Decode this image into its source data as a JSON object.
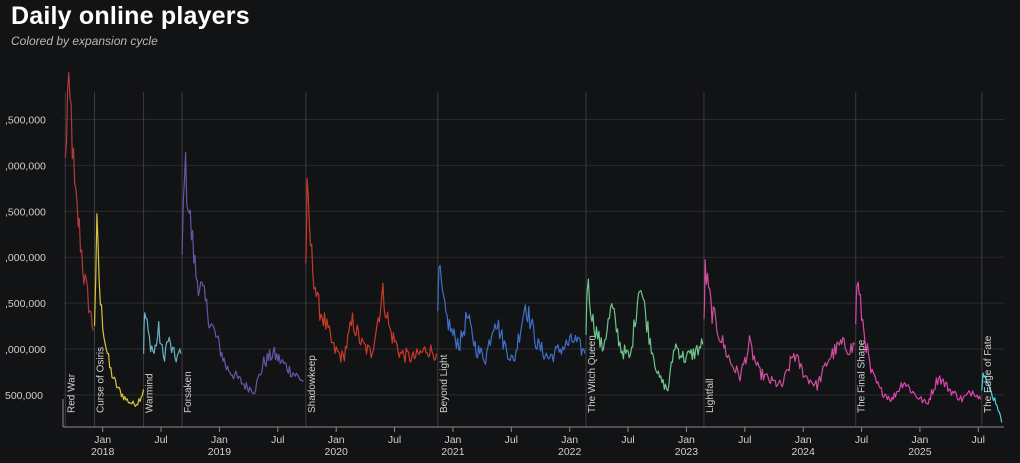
{
  "chart_data": {
    "type": "line",
    "title": "Daily online players",
    "subtitle": "Colored by expansion cycle",
    "xlabel": "",
    "ylabel": "",
    "ylim": [
      150000,
      3800000
    ],
    "grid": "horizontal",
    "y_ticks": [
      {
        "value": 500000,
        "label": "500,000"
      },
      {
        "value": 1000000,
        "label": ",000,000"
      },
      {
        "value": 1500000,
        "label": ",500,000"
      },
      {
        "value": 2000000,
        "label": ",000,000"
      },
      {
        "value": 2500000,
        "label": ",500,000"
      },
      {
        "value": 3000000,
        "label": ",000,000"
      },
      {
        "value": 3500000,
        "label": ",500,000"
      }
    ],
    "x_ticks": [
      {
        "t": 2018.0,
        "month": "Jan",
        "year": "2018"
      },
      {
        "t": 2018.5,
        "month": "Jul",
        "year": ""
      },
      {
        "t": 2019.0,
        "month": "Jan",
        "year": "2019"
      },
      {
        "t": 2019.5,
        "month": "Jul",
        "year": ""
      },
      {
        "t": 2020.0,
        "month": "Jan",
        "year": "2020"
      },
      {
        "t": 2020.5,
        "month": "Jul",
        "year": ""
      },
      {
        "t": 2021.0,
        "month": "Jan",
        "year": "2021"
      },
      {
        "t": 2021.5,
        "month": "Jul",
        "year": ""
      },
      {
        "t": 2022.0,
        "month": "Jan",
        "year": "2022"
      },
      {
        "t": 2022.5,
        "month": "Jul",
        "year": ""
      },
      {
        "t": 2023.0,
        "month": "Jan",
        "year": "2023"
      },
      {
        "t": 2023.5,
        "month": "Jul",
        "year": ""
      },
      {
        "t": 2024.0,
        "month": "Jan",
        "year": "2024"
      },
      {
        "t": 2024.5,
        "month": "Jul",
        "year": ""
      },
      {
        "t": 2025.0,
        "month": "Jan",
        "year": "2025"
      },
      {
        "t": 2025.5,
        "month": "Jul",
        "year": ""
      }
    ],
    "series": [
      {
        "name": "Red War",
        "color": "#b23a3a",
        "start": 2017.68,
        "points": [
          [
            2017.68,
            3000000
          ],
          [
            2017.7,
            3750000
          ],
          [
            2017.73,
            3550000
          ],
          [
            2017.76,
            2700000
          ],
          [
            2017.8,
            2300000
          ],
          [
            2017.84,
            1800000
          ],
          [
            2017.88,
            1500000
          ],
          [
            2017.92,
            1200000
          ]
        ]
      },
      {
        "name": "Curse of Osiris",
        "color": "#d8c43a",
        "start": 2017.93,
        "points": [
          [
            2017.93,
            1300000
          ],
          [
            2017.95,
            2300000
          ],
          [
            2017.98,
            1500000
          ],
          [
            2018.02,
            1100000
          ],
          [
            2018.06,
            800000
          ],
          [
            2018.1,
            650000
          ],
          [
            2018.14,
            550000
          ],
          [
            2018.2,
            450000
          ],
          [
            2018.26,
            400000
          ],
          [
            2018.3,
            420000
          ],
          [
            2018.34,
            520000
          ],
          [
            2018.35,
            560000
          ]
        ]
      },
      {
        "name": "Warmind",
        "color": "#6ab0c4",
        "start": 2018.35,
        "points": [
          [
            2018.35,
            1000000
          ],
          [
            2018.36,
            1400000
          ],
          [
            2018.4,
            1100000
          ],
          [
            2018.44,
            950000
          ],
          [
            2018.48,
            1200000
          ],
          [
            2018.52,
            900000
          ],
          [
            2018.56,
            1100000
          ],
          [
            2018.62,
            900000
          ],
          [
            2018.67,
            950000
          ]
        ]
      },
      {
        "name": "Forsaken",
        "color": "#6a54a8",
        "start": 2018.68,
        "points": [
          [
            2018.68,
            2000000
          ],
          [
            2018.7,
            3050000
          ],
          [
            2018.74,
            2500000
          ],
          [
            2018.8,
            1800000
          ],
          [
            2018.86,
            1600000
          ],
          [
            2018.92,
            1300000
          ],
          [
            2018.98,
            1100000
          ],
          [
            2019.06,
            800000
          ],
          [
            2019.14,
            700000
          ],
          [
            2019.22,
            600000
          ],
          [
            2019.3,
            550000
          ],
          [
            2019.38,
            850000
          ],
          [
            2019.46,
            950000
          ],
          [
            2019.54,
            850000
          ],
          [
            2019.62,
            750000
          ],
          [
            2019.72,
            650000
          ]
        ]
      },
      {
        "name": "Shadowkeep",
        "color": "#c73a2a",
        "start": 2019.74,
        "points": [
          [
            2019.74,
            1900000
          ],
          [
            2019.75,
            2650000
          ],
          [
            2019.79,
            2000000
          ],
          [
            2019.84,
            1500000
          ],
          [
            2019.9,
            1300000
          ],
          [
            2019.98,
            1000000
          ],
          [
            2020.06,
            900000
          ],
          [
            2020.14,
            1300000
          ],
          [
            2020.22,
            1050000
          ],
          [
            2020.3,
            950000
          ],
          [
            2020.4,
            1600000
          ],
          [
            2020.46,
            1200000
          ],
          [
            2020.55,
            950000
          ],
          [
            2020.66,
            900000
          ],
          [
            2020.78,
            1000000
          ],
          [
            2020.86,
            950000
          ]
        ]
      },
      {
        "name": "Beyond Light",
        "color": "#3f6fc8",
        "start": 2020.87,
        "points": [
          [
            2020.87,
            1300000
          ],
          [
            2020.88,
            1850000
          ],
          [
            2020.93,
            1400000
          ],
          [
            2021.0,
            1150000
          ],
          [
            2021.06,
            1050000
          ],
          [
            2021.12,
            1350000
          ],
          [
            2021.2,
            1000000
          ],
          [
            2021.28,
            900000
          ],
          [
            2021.36,
            1350000
          ],
          [
            2021.44,
            1050000
          ],
          [
            2021.52,
            850000
          ],
          [
            2021.62,
            1500000
          ],
          [
            2021.72,
            1050000
          ],
          [
            2021.82,
            900000
          ],
          [
            2021.92,
            1000000
          ],
          [
            2022.04,
            1100000
          ],
          [
            2022.13,
            950000
          ]
        ]
      },
      {
        "name": "The Witch Queen",
        "color": "#6cc68a",
        "start": 2022.14,
        "points": [
          [
            2022.14,
            1200000
          ],
          [
            2022.15,
            1750000
          ],
          [
            2022.2,
            1300000
          ],
          [
            2022.28,
            1000000
          ],
          [
            2022.36,
            1450000
          ],
          [
            2022.44,
            1000000
          ],
          [
            2022.52,
            900000
          ],
          [
            2022.6,
            1750000
          ],
          [
            2022.68,
            1150000
          ],
          [
            2022.76,
            700000
          ],
          [
            2022.84,
            550000
          ],
          [
            2022.9,
            1050000
          ],
          [
            2022.98,
            900000
          ],
          [
            2023.06,
            950000
          ],
          [
            2023.14,
            1050000
          ]
        ]
      },
      {
        "name": "Lightfall",
        "color": "#cc4f9c",
        "start": 2023.15,
        "points": [
          [
            2023.15,
            1300000
          ],
          [
            2023.16,
            1850000
          ],
          [
            2023.22,
            1400000
          ],
          [
            2023.3,
            1100000
          ],
          [
            2023.38,
            850000
          ],
          [
            2023.46,
            700000
          ],
          [
            2023.54,
            1050000
          ],
          [
            2023.62,
            750000
          ],
          [
            2023.72,
            650000
          ],
          [
            2023.82,
            600000
          ],
          [
            2023.92,
            950000
          ],
          [
            2024.02,
            700000
          ],
          [
            2024.12,
            600000
          ],
          [
            2024.22,
            900000
          ],
          [
            2024.32,
            1050000
          ],
          [
            2024.42,
            1000000
          ],
          [
            2024.44,
            1050000
          ]
        ]
      },
      {
        "name": "The Final Shape",
        "color": "#e042b0",
        "start": 2024.45,
        "points": [
          [
            2024.45,
            1300000
          ],
          [
            2024.46,
            1750000
          ],
          [
            2024.52,
            1200000
          ],
          [
            2024.58,
            750000
          ],
          [
            2024.66,
            550000
          ],
          [
            2024.76,
            450000
          ],
          [
            2024.86,
            650000
          ],
          [
            2024.96,
            500000
          ],
          [
            2025.06,
            400000
          ],
          [
            2025.16,
            700000
          ],
          [
            2025.26,
            550000
          ],
          [
            2025.36,
            450000
          ],
          [
            2025.46,
            550000
          ],
          [
            2025.52,
            450000
          ]
        ]
      },
      {
        "name": "The Edge of Fate",
        "color": "#4fd0d8",
        "start": 2025.53,
        "points": [
          [
            2025.53,
            600000
          ],
          [
            2025.54,
            800000
          ],
          [
            2025.58,
            600000
          ],
          [
            2025.62,
            500000
          ],
          [
            2025.66,
            400000
          ],
          [
            2025.7,
            200000
          ]
        ]
      }
    ]
  }
}
